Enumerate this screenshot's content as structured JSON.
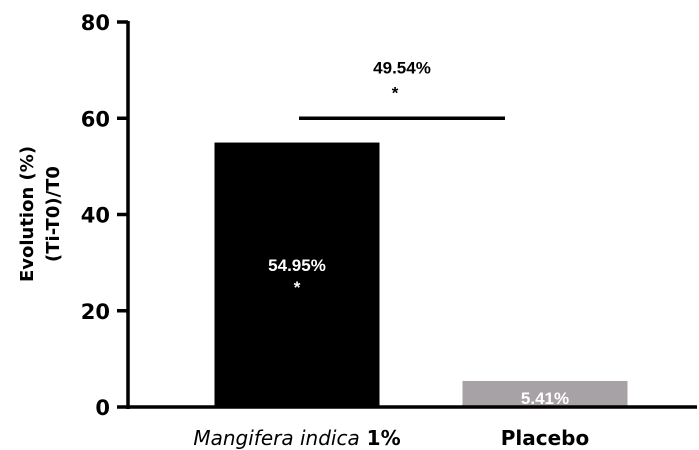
{
  "chart_data": {
    "type": "bar",
    "categories": [
      {
        "name": "Mangifera indica",
        "suffix": " 1%"
      },
      {
        "name": "Placebo",
        "suffix": ""
      }
    ],
    "values": [
      54.95,
      5.41
    ],
    "bar_colors": [
      "#000000",
      "#a7a2a6"
    ],
    "data_labels": [
      {
        "value": "54.95%",
        "mark": "*",
        "color": "#ffffff"
      },
      {
        "value": "5.41%",
        "mark": "",
        "color": "#ffffff"
      }
    ],
    "ylabel_lines": [
      "Evolution (%)",
      "(Ti-T0)/T0"
    ],
    "xlabel": "",
    "title": "",
    "ylim": [
      0,
      80
    ],
    "yticks": [
      0,
      20,
      40,
      60,
      80
    ],
    "comparison": {
      "value_label": "49.54%",
      "mark": "*",
      "y": 60
    },
    "grid": false,
    "legend": "none"
  }
}
